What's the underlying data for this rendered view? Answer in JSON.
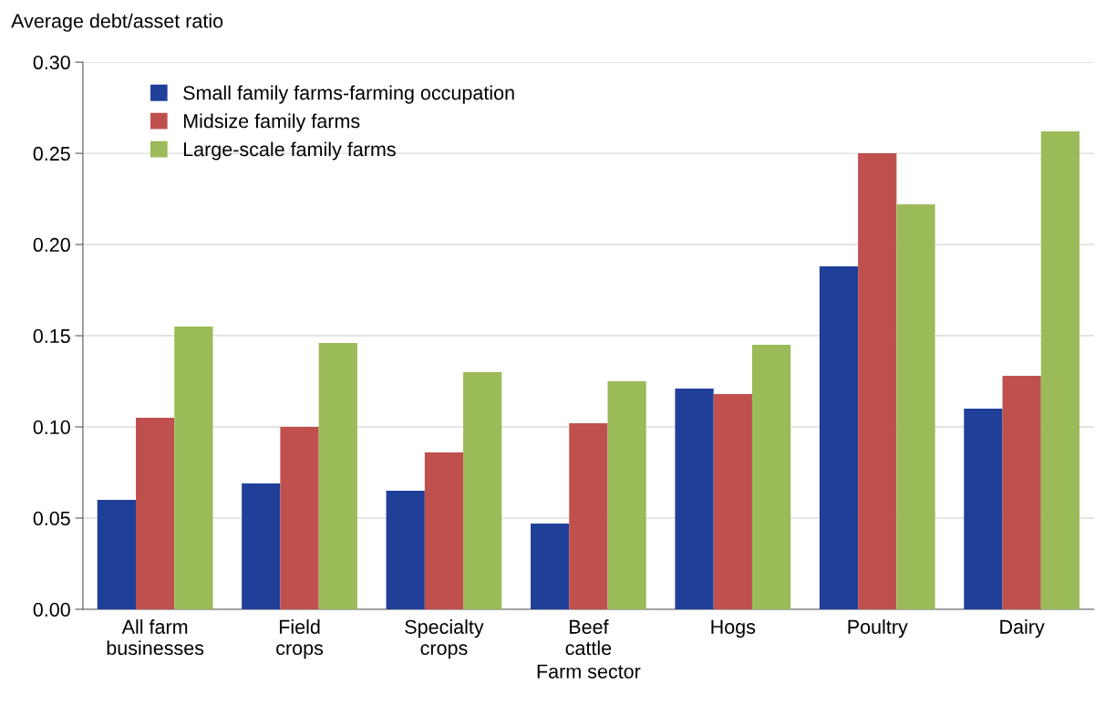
{
  "chart_data": {
    "type": "bar",
    "ylabel": "Average debt/asset ratio",
    "xlabel": "Farm sector",
    "categories": [
      "All farm\nbusinesses",
      "Field\ncrops",
      "Specialty\ncrops",
      "Beef\ncattle",
      "Hogs",
      "Poultry",
      "Dairy"
    ],
    "series": [
      {
        "name": "Small family farms-farming occupation",
        "color": "#1f3f99",
        "values": [
          0.06,
          0.069,
          0.065,
          0.047,
          0.121,
          0.188,
          0.11
        ]
      },
      {
        "name": "Midsize family farms",
        "color": "#c0504d",
        "values": [
          0.105,
          0.1,
          0.086,
          0.102,
          0.118,
          0.25,
          0.128
        ]
      },
      {
        "name": "Large-scale family farms",
        "color": "#9bbb59",
        "values": [
          0.155,
          0.146,
          0.13,
          0.125,
          0.145,
          0.222,
          0.262
        ]
      }
    ],
    "ylim": [
      0,
      0.3
    ],
    "yticks": [
      {
        "value": 0,
        "label": "0.00"
      },
      {
        "value": 0.05,
        "label": "0.05"
      },
      {
        "value": 0.1,
        "label": "0.10"
      },
      {
        "value": 0.15,
        "label": "0.15"
      },
      {
        "value": 0.2,
        "label": "0.20"
      },
      {
        "value": 0.25,
        "label": "0.25"
      },
      {
        "value": 0.3,
        "label": "0.30"
      }
    ],
    "grid": "y",
    "legend": "top left"
  }
}
